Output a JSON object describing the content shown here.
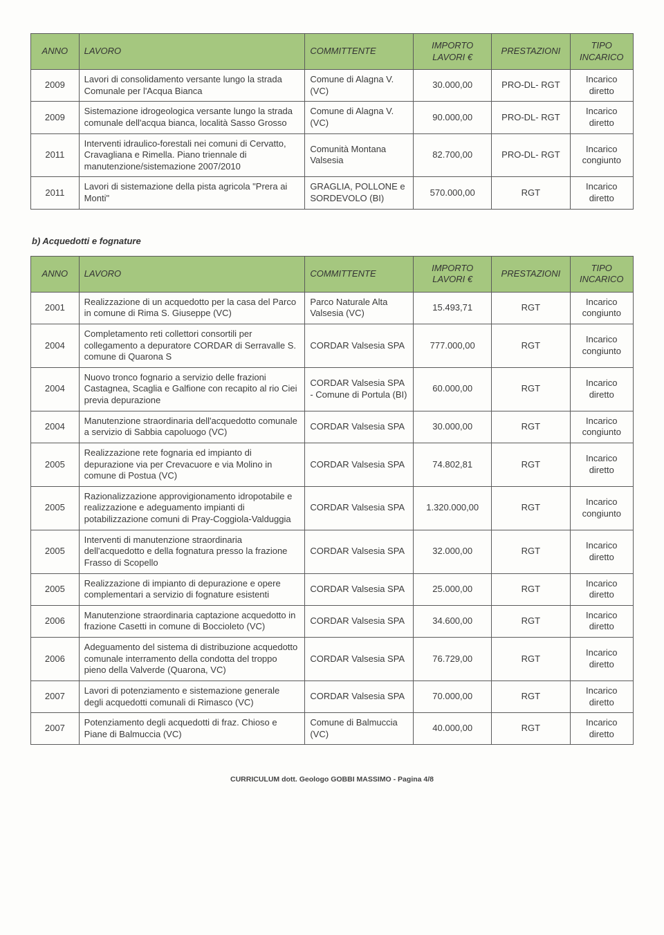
{
  "table1": {
    "headers": {
      "anno": "ANNO",
      "lavoro": "LAVORO",
      "committente": "COMMITTENTE",
      "importo": "IMPORTO LAVORI €",
      "prestazioni": "PRESTAZIONI",
      "tipo": "TIPO INCARICO"
    },
    "rows": [
      {
        "anno": "2009",
        "lavoro": "Lavori di consolidamento versante lungo la strada Comunale per l'Acqua Bianca",
        "committente": "Comune di Alagna V. (VC)",
        "importo": "30.000,00",
        "prestazioni": "PRO-DL- RGT",
        "tipo": "Incarico diretto"
      },
      {
        "anno": "2009",
        "lavoro": "Sistemazione idrogeologica versante lungo la strada comunale dell'acqua bianca, località Sasso Grosso",
        "committente": "Comune di Alagna V. (VC)",
        "importo": "90.000,00",
        "prestazioni": "PRO-DL- RGT",
        "tipo": "Incarico diretto"
      },
      {
        "anno": "2011",
        "lavoro": "Interventi idraulico-forestali nei comuni di Cervatto, Cravagliana e Rimella. Piano triennale di manutenzione/sistemazione 2007/2010",
        "committente": "Comunità Montana Valsesia",
        "importo": "82.700,00",
        "prestazioni": "PRO-DL- RGT",
        "tipo": "Incarico congiunto"
      },
      {
        "anno": "2011",
        "lavoro": "Lavori di sistemazione della pista agricola \"Prera ai Monti\"",
        "committente": "GRAGLIA, POLLONE e SORDEVOLO (BI)",
        "importo": "570.000,00",
        "prestazioni": "RGT",
        "tipo": "Incarico diretto"
      }
    ]
  },
  "sectionB": "b)   Acquedotti e fognature",
  "table2": {
    "headers": {
      "anno": "ANNO",
      "lavoro": "LAVORO",
      "committente": "COMMITTENTE",
      "importo": "IMPORTO LAVORI €",
      "prestazioni": "PRESTAZIONI",
      "tipo": "TIPO INCARICO"
    },
    "rows": [
      {
        "anno": "2001",
        "lavoro": "Realizzazione di un acquedotto per la casa del Parco in comune di Rima S. Giuseppe (VC)",
        "committente": "Parco Naturale Alta Valsesia (VC)",
        "importo": "15.493,71",
        "prestazioni": "RGT",
        "tipo": "Incarico congiunto"
      },
      {
        "anno": "2004",
        "lavoro": "Completamento reti collettori consortili per collegamento a depuratore CORDAR di Serravalle S. comune di Quarona S",
        "committente": "CORDAR Valsesia SPA",
        "importo": "777.000,00",
        "prestazioni": "RGT",
        "tipo": "Incarico congiunto"
      },
      {
        "anno": "2004",
        "lavoro": "Nuovo tronco fognario a servizio delle frazioni Castagnea, Scaglia e Galfione con recapito al rio Ciei previa depurazione",
        "committente": "CORDAR Valsesia SPA - Comune di Portula (BI)",
        "importo": "60.000,00",
        "prestazioni": "RGT",
        "tipo": "Incarico diretto"
      },
      {
        "anno": "2004",
        "lavoro": "Manutenzione straordinaria dell'acquedotto comunale a servizio di Sabbia capoluogo (VC)",
        "committente": "CORDAR Valsesia SPA",
        "importo": "30.000,00",
        "prestazioni": "RGT",
        "tipo": "Incarico congiunto"
      },
      {
        "anno": "2005",
        "lavoro": "Realizzazione rete fognaria ed impianto di depurazione via per Crevacuore e via Molino in comune di Postua (VC)",
        "committente": "CORDAR Valsesia SPA",
        "importo": "74.802,81",
        "prestazioni": "RGT",
        "tipo": "Incarico diretto"
      },
      {
        "anno": "2005",
        "lavoro": "Razionalizzazione approvigionamento idropotabile e realizzazione e adeguamento impianti di potabilizzazione comuni di Pray-Coggiola-Valduggia",
        "committente": "CORDAR Valsesia SPA",
        "importo": "1.320.000,00",
        "prestazioni": "RGT",
        "tipo": "Incarico congiunto"
      },
      {
        "anno": "2005",
        "lavoro": "Interventi di manutenzione straordinaria dell'acquedotto e della fognatura presso la frazione Frasso di Scopello",
        "committente": "CORDAR Valsesia SPA",
        "importo": "32.000,00",
        "prestazioni": "RGT",
        "tipo": "Incarico diretto"
      },
      {
        "anno": "2005",
        "lavoro": "Realizzazione di impianto di depurazione e opere complementari a servizio di fognature esistenti",
        "committente": "CORDAR Valsesia SPA",
        "importo": "25.000,00",
        "prestazioni": "RGT",
        "tipo": "Incarico diretto"
      },
      {
        "anno": "2006",
        "lavoro": "Manutenzione straordinaria captazione acquedotto in frazione Casetti in comune di Boccioleto (VC)",
        "committente": "CORDAR Valsesia SPA",
        "importo": "34.600,00",
        "prestazioni": "RGT",
        "tipo": "Incarico diretto"
      },
      {
        "anno": "2006",
        "lavoro": "Adeguamento del sistema di distribuzione acquedotto comunale interramento della condotta del troppo pieno della Valverde (Quarona, VC)",
        "committente": "CORDAR Valsesia SPA",
        "importo": "76.729,00",
        "prestazioni": "RGT",
        "tipo": "Incarico diretto"
      },
      {
        "anno": "2007",
        "lavoro": "Lavori di potenziamento e sistemazione generale degli acquedotti comunali di Rimasco (VC)",
        "committente": "CORDAR Valsesia SPA",
        "importo": "70.000,00",
        "prestazioni": "RGT",
        "tipo": "Incarico diretto"
      },
      {
        "anno": "2007",
        "lavoro": "Potenziamento degli acquedotti di fraz. Chioso e Piane di Balmuccia (VC)",
        "committente": "Comune di Balmuccia (VC)",
        "importo": "40.000,00",
        "prestazioni": "RGT",
        "tipo": "Incarico diretto"
      }
    ]
  },
  "footer": "CURRICULUM dott. Geologo GOBBI MASSIMO - Pagina 4/8"
}
